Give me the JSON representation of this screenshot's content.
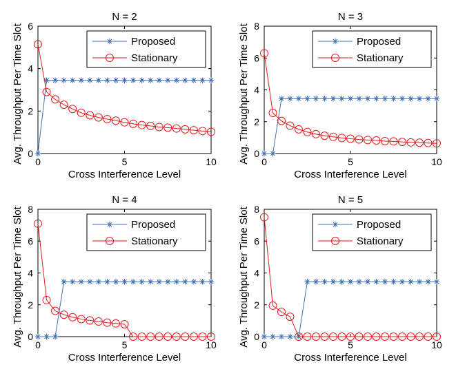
{
  "colors": {
    "proposed": "#3f6fb0",
    "stationary": "#e31a1c",
    "axis": "#000000"
  },
  "chart_data": [
    {
      "type": "line",
      "title": "N = 2",
      "xlabel": "Cross Interference Level",
      "ylabel": "Avg. Throughput Per Time Slot",
      "xlim": [
        0,
        10
      ],
      "ylim": [
        0,
        6
      ],
      "xticks": [
        "0",
        "5",
        "10"
      ],
      "yticks": [
        "0",
        "2",
        "4",
        "6"
      ],
      "legend": {
        "location": "top-right",
        "box": true
      },
      "series": [
        {
          "name": "Proposed",
          "marker": "asterisk",
          "x": [
            0,
            0.5,
            1,
            1.5,
            2,
            2.5,
            3,
            3.5,
            4,
            4.5,
            5,
            5.5,
            6,
            6.5,
            7,
            7.5,
            8,
            8.5,
            9,
            9.5,
            10
          ],
          "y": [
            0,
            3.45,
            3.45,
            3.45,
            3.45,
            3.45,
            3.45,
            3.45,
            3.45,
            3.45,
            3.45,
            3.45,
            3.45,
            3.45,
            3.45,
            3.45,
            3.45,
            3.45,
            3.45,
            3.45,
            3.45
          ]
        },
        {
          "name": "Stationary",
          "marker": "circle",
          "x": [
            0,
            0.5,
            1,
            1.5,
            2,
            2.5,
            3,
            3.5,
            4,
            4.5,
            5,
            5.5,
            6,
            6.5,
            7,
            7.5,
            8,
            8.5,
            9,
            9.5,
            10
          ],
          "y": [
            5.15,
            2.9,
            2.55,
            2.3,
            2.1,
            1.92,
            1.8,
            1.7,
            1.62,
            1.55,
            1.47,
            1.4,
            1.34,
            1.3,
            1.25,
            1.22,
            1.18,
            1.14,
            1.1,
            1.06,
            1.02
          ]
        }
      ]
    },
    {
      "type": "line",
      "title": "N = 3",
      "xlabel": "Cross Interference Level",
      "ylabel": "Avg. Throughput Per Time Slot",
      "xlim": [
        0,
        10
      ],
      "ylim": [
        0,
        8
      ],
      "xticks": [
        "0",
        "5",
        "10"
      ],
      "yticks": [
        "0",
        "2",
        "4",
        "6",
        "8"
      ],
      "legend": {
        "location": "top-right",
        "box": true
      },
      "series": [
        {
          "name": "Proposed",
          "marker": "asterisk",
          "x": [
            0,
            0.5,
            1,
            1.5,
            2,
            2.5,
            3,
            3.5,
            4,
            4.5,
            5,
            5.5,
            6,
            6.5,
            7,
            7.5,
            8,
            8.5,
            9,
            9.5,
            10
          ],
          "y": [
            0,
            0,
            3.45,
            3.45,
            3.45,
            3.45,
            3.45,
            3.45,
            3.45,
            3.45,
            3.45,
            3.45,
            3.45,
            3.45,
            3.45,
            3.45,
            3.45,
            3.45,
            3.45,
            3.45,
            3.45
          ]
        },
        {
          "name": "Stationary",
          "marker": "circle",
          "x": [
            0,
            0.5,
            1,
            1.5,
            2,
            2.5,
            3,
            3.5,
            4,
            4.5,
            5,
            5.5,
            6,
            6.5,
            7,
            7.5,
            8,
            8.5,
            9,
            9.5,
            10
          ],
          "y": [
            6.3,
            2.55,
            2.05,
            1.75,
            1.52,
            1.35,
            1.22,
            1.12,
            1.05,
            0.98,
            0.93,
            0.88,
            0.85,
            0.82,
            0.78,
            0.76,
            0.73,
            0.7,
            0.68,
            0.66,
            0.64
          ]
        }
      ]
    },
    {
      "type": "line",
      "title": "N = 4",
      "xlabel": "Cross Interference Level",
      "ylabel": "Avg. Throughput Per Time Slot",
      "xlim": [
        0,
        10
      ],
      "ylim": [
        0,
        8
      ],
      "xticks": [
        "0",
        "5",
        "10"
      ],
      "yticks": [
        "0",
        "2",
        "4",
        "6",
        "8"
      ],
      "legend": {
        "location": "top-right",
        "box": true
      },
      "series": [
        {
          "name": "Proposed",
          "marker": "asterisk",
          "x": [
            0,
            0.5,
            1,
            1.5,
            2,
            2.5,
            3,
            3.5,
            4,
            4.5,
            5,
            5.5,
            6,
            6.5,
            7,
            7.5,
            8,
            8.5,
            9,
            9.5,
            10
          ],
          "y": [
            0,
            0,
            0,
            3.45,
            3.45,
            3.45,
            3.45,
            3.45,
            3.45,
            3.45,
            3.45,
            3.45,
            3.45,
            3.45,
            3.45,
            3.45,
            3.45,
            3.45,
            3.45,
            3.45,
            3.45
          ]
        },
        {
          "name": "Stationary",
          "marker": "circle",
          "x": [
            0,
            0.5,
            1,
            1.5,
            2,
            2.5,
            3,
            3.5,
            4,
            4.5,
            5,
            5.5,
            6,
            6.5,
            7,
            7.5,
            8,
            8.5,
            9,
            9.5,
            10
          ],
          "y": [
            7.1,
            2.3,
            1.62,
            1.38,
            1.22,
            1.1,
            1.02,
            0.95,
            0.88,
            0.83,
            0.78,
            0,
            0,
            0,
            0,
            0,
            0,
            0,
            0,
            0,
            0
          ]
        }
      ]
    },
    {
      "type": "line",
      "title": "N = 5",
      "xlabel": "Cross Interference Level",
      "ylabel": "Avg. Throughput Per Time Slot",
      "xlim": [
        0,
        10
      ],
      "ylim": [
        0,
        8
      ],
      "xticks": [
        "0",
        "5",
        "10"
      ],
      "yticks": [
        "0",
        "2",
        "4",
        "6",
        "8"
      ],
      "legend": {
        "location": "top-right",
        "box": true
      },
      "series": [
        {
          "name": "Proposed",
          "marker": "asterisk",
          "x": [
            0,
            0.5,
            1,
            1.5,
            2,
            2.5,
            3,
            3.5,
            4,
            4.5,
            5,
            5.5,
            6,
            6.5,
            7,
            7.5,
            8,
            8.5,
            9,
            9.5,
            10
          ],
          "y": [
            0,
            0,
            0,
            0,
            0,
            3.45,
            3.45,
            3.45,
            3.45,
            3.45,
            3.45,
            3.45,
            3.45,
            3.45,
            3.45,
            3.45,
            3.45,
            3.45,
            3.45,
            3.45,
            3.45
          ]
        },
        {
          "name": "Stationary",
          "marker": "circle",
          "x": [
            0,
            0.5,
            1,
            1.5,
            2,
            2.5,
            3,
            3.5,
            4,
            4.5,
            5,
            5.5,
            6,
            6.5,
            7,
            7.5,
            8,
            8.5,
            9,
            9.5,
            10
          ],
          "y": [
            7.5,
            1.95,
            1.55,
            1.25,
            0,
            0,
            0,
            0,
            0,
            0,
            0,
            0,
            0,
            0,
            0,
            0,
            0,
            0,
            0,
            0,
            0
          ]
        }
      ]
    }
  ]
}
